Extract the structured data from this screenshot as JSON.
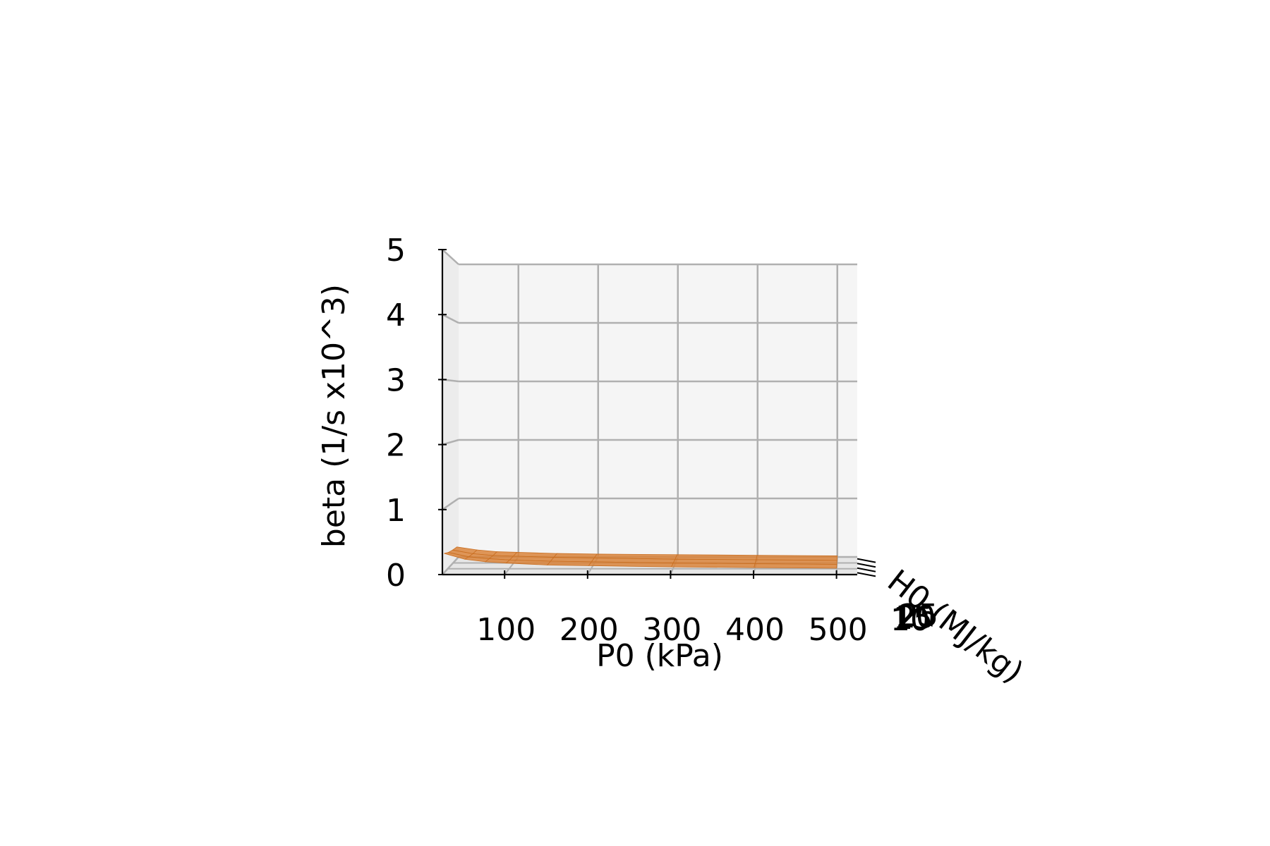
{
  "chart_data": {
    "type": "surface3d",
    "xlabel": "P0 (kPa)",
    "ylabel": "beta (1/s x10^3)",
    "zlabel": "H0 (MJ/kg)",
    "x_ticks": [
      "100",
      "200",
      "300",
      "400",
      "500"
    ],
    "y_ticks": [
      "0",
      "1",
      "2",
      "3",
      "4",
      "5"
    ],
    "z_ticks": [
      "10",
      "15",
      "20",
      "25"
    ],
    "xlim": [
      25,
      525
    ],
    "ylim": [
      0,
      5
    ],
    "zlim": [
      8,
      27
    ],
    "grid": true,
    "surface_color": "#d9843b",
    "surface_edge_color": "#c96f22",
    "surface": {
      "P0": [
        25,
        50,
        75,
        100,
        150,
        200,
        300,
        400,
        500
      ],
      "H0": [
        10,
        15,
        20,
        25
      ],
      "beta": [
        [
          0.3,
          0.21,
          0.17,
          0.15,
          0.12,
          0.11,
          0.09,
          0.08,
          0.07
        ],
        [
          0.25,
          0.18,
          0.15,
          0.13,
          0.11,
          0.1,
          0.08,
          0.07,
          0.06
        ],
        [
          0.22,
          0.16,
          0.13,
          0.12,
          0.1,
          0.09,
          0.07,
          0.06,
          0.05
        ],
        [
          0.2,
          0.15,
          0.12,
          0.11,
          0.09,
          0.08,
          0.07,
          0.06,
          0.05
        ]
      ]
    }
  }
}
